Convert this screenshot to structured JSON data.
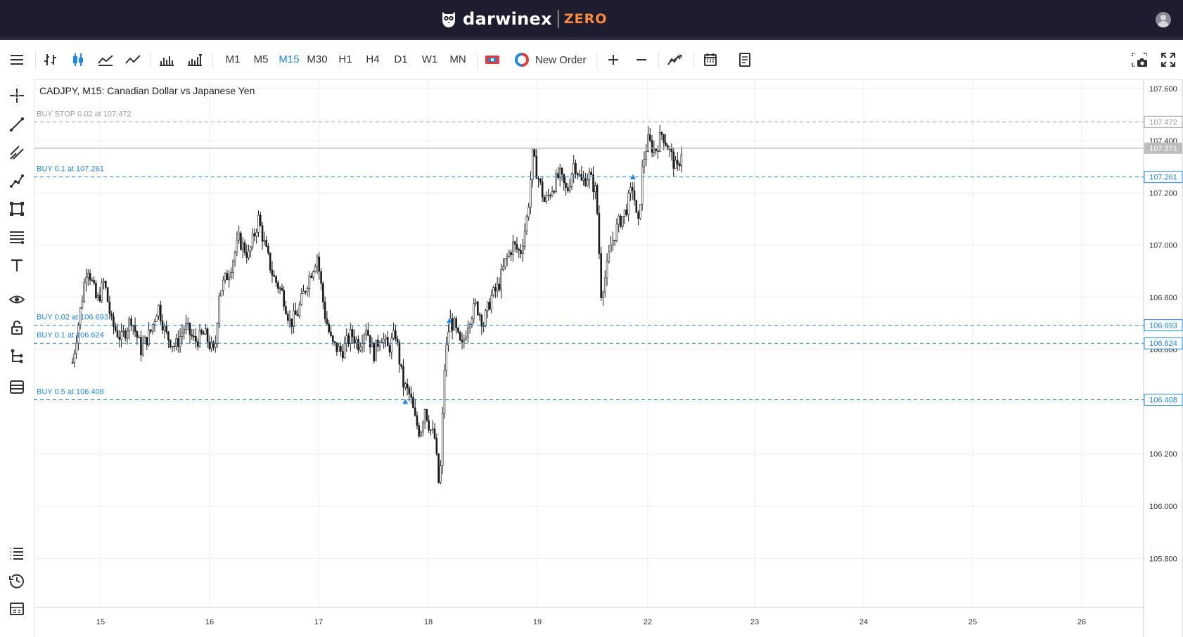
{
  "header": {
    "brand_name": "darwinex",
    "brand_sub": "ZERO",
    "brand_sub_color": "#ff8a3d",
    "background": "#1e1d30",
    "avatar_icon": "user-avatar-icon"
  },
  "toolbar": {
    "menu_icon": "hamburger-menu-icon",
    "chart_type_icons": [
      "bar-chart-icon",
      "candlestick-icon",
      "area-chart-icon",
      "line-chart-icon"
    ],
    "volume_icons": [
      "volume-icon",
      "tick-volume-icon"
    ],
    "timeframes": [
      "M1",
      "M5",
      "M15",
      "M30",
      "H1",
      "H4",
      "D1",
      "W1",
      "MN"
    ],
    "active_timeframe": "M15",
    "new_order_label": "New Order",
    "zoom_in_icon": "plus-icon",
    "zoom_out_icon": "minus-icon",
    "indicators_icon": "indicators-icon",
    "calendar_icon": "calendar-icon",
    "notes_icon": "document-icon",
    "screenshot_icon": "camera-icon",
    "fullscreen_icon": "fullscreen-icon",
    "accent": "#1e88e5"
  },
  "sidebar": {
    "tools": [
      "crosshair-icon",
      "trendline-icon",
      "channel-icon",
      "polyline-icon",
      "shapes-icon",
      "fibonacci-icon",
      "text-icon",
      "eye-icon",
      "lock-icon",
      "objects-tree-icon",
      "layers-icon"
    ],
    "bottom_tools": [
      "list-icon",
      "history-icon",
      "panel-icon"
    ]
  },
  "chart": {
    "title": "CADJPY, M15: Canadian Dollar vs Japanese Yen"
  },
  "chart_data": {
    "type": "candlestick",
    "symbol": "CADJPY",
    "timeframe": "M15",
    "title": "CADJPY, M15: Canadian Dollar vs Japanese Yen",
    "x_labels": [
      "15",
      "16",
      "17",
      "18",
      "19",
      "22",
      "23",
      "24",
      "25",
      "26"
    ],
    "y_ticks": [
      "107.600",
      "107.400",
      "107.200",
      "107.000",
      "106.800",
      "106.600",
      "106.400",
      "106.200",
      "106.000",
      "105.800"
    ],
    "ylim": [
      105.76,
      107.65
    ],
    "current_price": "107.371",
    "grid": true,
    "price_path": [
      [
        0,
        106.55
      ],
      [
        0.4,
        106.8
      ],
      [
        0.6,
        106.93
      ],
      [
        1.0,
        106.78
      ],
      [
        1.3,
        106.86
      ],
      [
        1.6,
        106.7
      ],
      [
        2.0,
        106.64
      ],
      [
        2.4,
        106.72
      ],
      [
        2.8,
        106.6
      ],
      [
        3.2,
        106.67
      ],
      [
        3.5,
        106.77
      ],
      [
        3.8,
        106.66
      ],
      [
        4.2,
        106.61
      ],
      [
        4.6,
        106.69
      ],
      [
        5.0,
        106.63
      ],
      [
        5.4,
        106.66
      ],
      [
        5.8,
        106.58
      ],
      [
        6.0,
        106.82
      ],
      [
        6.4,
        106.9
      ],
      [
        6.8,
        107.02
      ],
      [
        7.2,
        106.96
      ],
      [
        7.6,
        107.1
      ],
      [
        7.9,
        106.98
      ],
      [
        8.2,
        106.88
      ],
      [
        8.6,
        106.81
      ],
      [
        8.9,
        106.7
      ],
      [
        9.2,
        106.74
      ],
      [
        9.6,
        106.86
      ],
      [
        10.0,
        106.96
      ],
      [
        10.3,
        106.74
      ],
      [
        10.6,
        106.62
      ],
      [
        11.0,
        106.59
      ],
      [
        11.4,
        106.66
      ],
      [
        11.7,
        106.62
      ],
      [
        12.0,
        106.69
      ],
      [
        12.3,
        106.58
      ],
      [
        12.6,
        106.66
      ],
      [
        12.9,
        106.6
      ],
      [
        13.2,
        106.66
      ],
      [
        13.5,
        106.47
      ],
      [
        13.8,
        106.42
      ],
      [
        14.0,
        106.33
      ],
      [
        14.2,
        106.28
      ],
      [
        14.4,
        106.38
      ],
      [
        14.6,
        106.3
      ],
      [
        14.8,
        106.26
      ],
      [
        15.0,
        106.05
      ],
      [
        15.2,
        106.53
      ],
      [
        15.4,
        106.71
      ],
      [
        15.6,
        106.69
      ],
      [
        15.9,
        106.6
      ],
      [
        16.2,
        106.72
      ],
      [
        16.5,
        106.77
      ],
      [
        16.8,
        106.7
      ],
      [
        17.1,
        106.8
      ],
      [
        17.4,
        106.84
      ],
      [
        17.7,
        106.94
      ],
      [
        18.0,
        107.0
      ],
      [
        18.3,
        106.97
      ],
      [
        18.6,
        107.12
      ],
      [
        18.8,
        107.34
      ],
      [
        19.0,
        107.27
      ],
      [
        19.3,
        107.16
      ],
      [
        19.6,
        107.22
      ],
      [
        19.9,
        107.27
      ],
      [
        20.2,
        107.2
      ],
      [
        20.5,
        107.32
      ],
      [
        20.8,
        107.24
      ],
      [
        21.1,
        107.27
      ],
      [
        21.4,
        107.2
      ],
      [
        21.6,
        106.82
      ],
      [
        21.8,
        106.89
      ],
      [
        22.0,
        107.0
      ],
      [
        22.3,
        107.08
      ],
      [
        22.6,
        107.13
      ],
      [
        22.9,
        107.23
      ],
      [
        23.1,
        107.05
      ],
      [
        23.3,
        107.31
      ],
      [
        23.5,
        107.4
      ],
      [
        23.8,
        107.36
      ],
      [
        24.1,
        107.43
      ],
      [
        24.4,
        107.36
      ],
      [
        24.7,
        107.28
      ],
      [
        24.9,
        107.37
      ]
    ],
    "buy_markers": [
      {
        "x": 13.6,
        "price": 106.4
      },
      {
        "x": 15.4,
        "price": 106.71
      },
      {
        "x": 22.9,
        "price": 107.26
      }
    ],
    "order_lines": [
      {
        "label": "BUY STOP 0.02 at 107.472",
        "price": 107.472,
        "tag": "107.472",
        "color": "#9e9e9e"
      },
      {
        "label": "BUY 0.1 at 107.261",
        "price": 107.261,
        "tag": "107.261",
        "color": "#1e88e5"
      },
      {
        "label": "BUY 0.02 at 106.693",
        "price": 106.693,
        "tag": "106.693",
        "color": "#1e88e5"
      },
      {
        "label": "BUY 0.1 at 106.624",
        "price": 106.624,
        "tag": "106.624",
        "color": "#1e88e5"
      },
      {
        "label": "BUY 0.5 at 106.408",
        "price": 106.408,
        "tag": "106.408",
        "color": "#1e88e5"
      }
    ]
  }
}
